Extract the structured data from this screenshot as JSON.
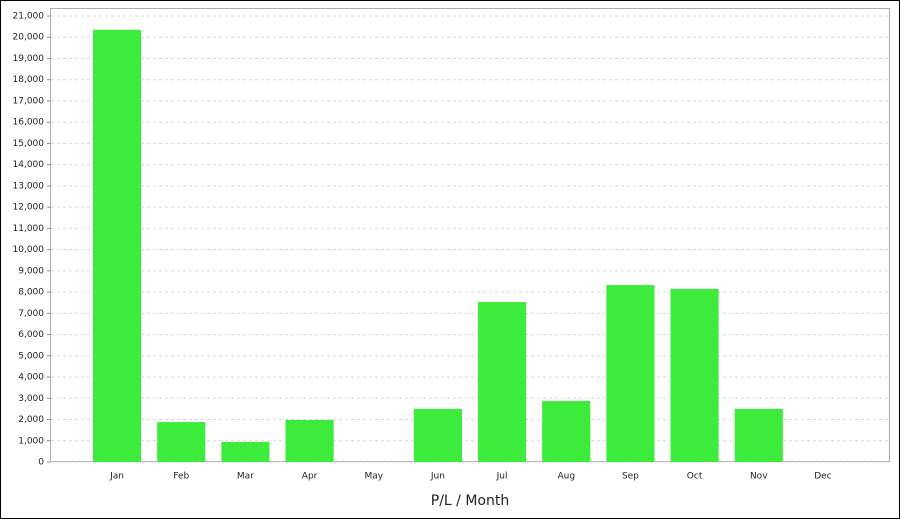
{
  "chart_data": {
    "type": "bar",
    "x_label": "P/L / Month",
    "categories": [
      "Jan",
      "Feb",
      "Mar",
      "Apr",
      "May",
      "Jun",
      "Jul",
      "Aug",
      "Sep",
      "Oct",
      "Nov",
      "Dec"
    ],
    "values": [
      20350,
      1880,
      940,
      1980,
      0,
      2500,
      7530,
      2870,
      8330,
      8150,
      2500,
      0
    ],
    "color": "#3deb3d",
    "ylim": [
      0,
      21000
    ],
    "yticks": [
      0,
      {
        "value": 1000,
        "label": "1,000"
      },
      {
        "value": 2000,
        "label": "2,000"
      },
      {
        "value": 3000,
        "label": "3,000"
      },
      {
        "value": 4000,
        "label": "4,000"
      },
      {
        "value": 5000,
        "label": "5,000"
      },
      {
        "value": 6000,
        "label": "6,000"
      },
      {
        "value": 7000,
        "label": "7,000"
      },
      {
        "value": 8000,
        "label": "8,000"
      },
      {
        "value": 9000,
        "label": "9,000"
      },
      {
        "value": 10000,
        "label": "10,000"
      },
      {
        "value": 11000,
        "label": "11,000"
      },
      {
        "value": 12000,
        "label": "12,000"
      },
      {
        "value": 13000,
        "label": "13,000"
      },
      {
        "value": 14000,
        "label": "14,000"
      },
      {
        "value": 15000,
        "label": "15,000"
      },
      {
        "value": 16000,
        "label": "16,000"
      },
      {
        "value": 17000,
        "label": "17,000"
      },
      {
        "value": 18000,
        "label": "18,000"
      },
      {
        "value": 19000,
        "label": "19,000"
      },
      {
        "value": 20000,
        "label": "20,000"
      },
      {
        "value": 21000,
        "label": "21,000"
      }
    ],
    "grid": true
  }
}
